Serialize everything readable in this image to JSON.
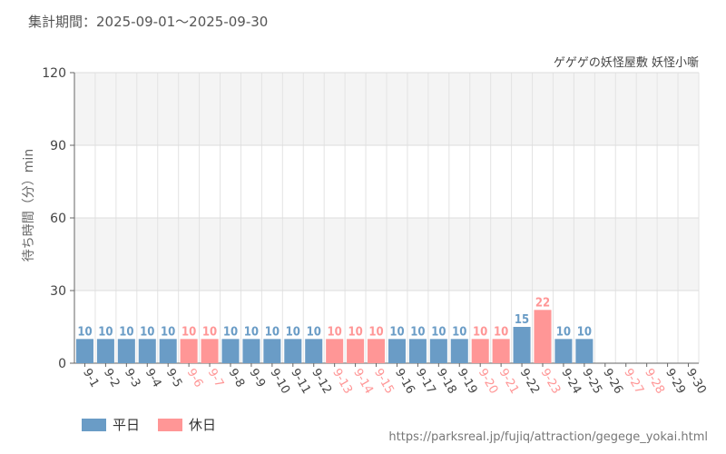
{
  "header": {
    "period": "集計期間：2025-09-01～2025-09-30",
    "subtitle": "ゲゲゲの妖怪屋敷 妖怪小噺"
  },
  "legend": {
    "weekday": "平日",
    "holiday": "休日"
  },
  "footer": {
    "url": "https://parksreal.jp/fujiq/attraction/gegege_yokai.html"
  },
  "colors": {
    "weekday": "#6a9cc6",
    "holiday": "#ff9696"
  },
  "chart_data": {
    "type": "bar",
    "ylabel": "待ち時間（分）min",
    "ylim": [
      0,
      120
    ],
    "yticks": [
      0,
      30,
      60,
      90,
      120
    ],
    "grid": true,
    "legend_position": "bottom-left",
    "categories": [
      "9-1",
      "9-2",
      "9-3",
      "9-4",
      "9-5",
      "9-6",
      "9-7",
      "9-8",
      "9-9",
      "9-10",
      "9-11",
      "9-12",
      "9-13",
      "9-14",
      "9-15",
      "9-16",
      "9-17",
      "9-18",
      "9-19",
      "9-20",
      "9-21",
      "9-22",
      "9-23",
      "9-24",
      "9-25",
      "9-26",
      "9-27",
      "9-28",
      "9-29",
      "9-30"
    ],
    "values": [
      10,
      10,
      10,
      10,
      10,
      10,
      10,
      10,
      10,
      10,
      10,
      10,
      10,
      10,
      10,
      10,
      10,
      10,
      10,
      10,
      10,
      15,
      22,
      10,
      10,
      null,
      null,
      null,
      null,
      null
    ],
    "day_type": [
      "weekday",
      "weekday",
      "weekday",
      "weekday",
      "weekday",
      "holiday",
      "holiday",
      "weekday",
      "weekday",
      "weekday",
      "weekday",
      "weekday",
      "holiday",
      "holiday",
      "holiday",
      "weekday",
      "weekday",
      "weekday",
      "weekday",
      "holiday",
      "holiday",
      "weekday",
      "holiday",
      "weekday",
      "weekday",
      "weekday",
      "holiday",
      "holiday",
      "weekday",
      "weekday"
    ]
  }
}
